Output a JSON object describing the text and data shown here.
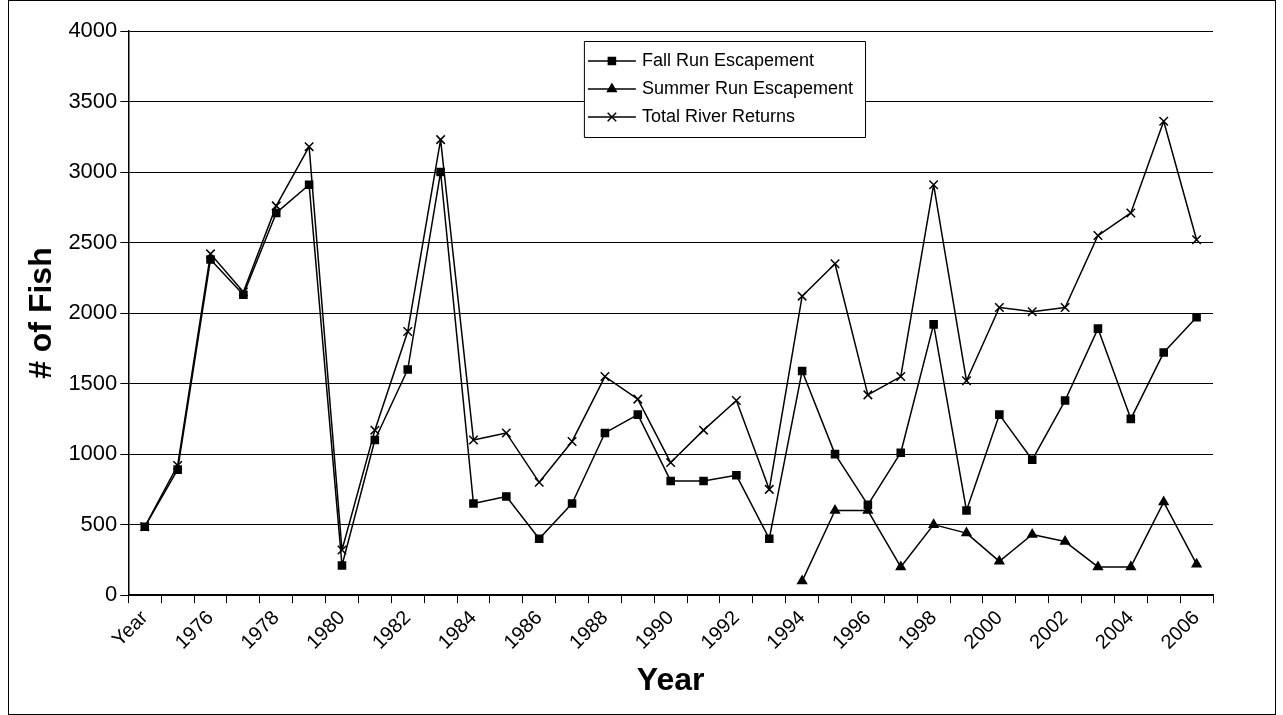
{
  "chart_data": {
    "type": "line",
    "xlabel": "Year",
    "ylabel": "# of Fish",
    "categories": [
      "Year",
      null,
      "1976",
      null,
      "1978",
      null,
      "1980",
      null,
      "1982",
      null,
      "1984",
      null,
      "1986",
      null,
      "1988",
      null,
      "1990",
      null,
      "1992",
      null,
      "1994",
      null,
      "1996",
      null,
      "1998",
      null,
      "2000",
      null,
      "2002",
      null,
      "2004",
      null,
      "2006"
    ],
    "series": [
      {
        "name": "Fall Run Escapement",
        "color": "#000000",
        "marker": "square",
        "values": [
          485,
          890,
          2380,
          2130,
          2710,
          2910,
          210,
          1100,
          1600,
          3000,
          650,
          700,
          400,
          650,
          1150,
          1280,
          810,
          810,
          850,
          400,
          1590,
          1000,
          640,
          1010,
          1920,
          600,
          1280,
          960,
          1380,
          1890,
          1250,
          1720,
          1970
        ]
      },
      {
        "name": "Summer Run Escapement",
        "color": "#000000",
        "marker": "triangle",
        "values": [
          null,
          null,
          null,
          null,
          null,
          null,
          null,
          null,
          null,
          null,
          null,
          null,
          null,
          null,
          null,
          null,
          null,
          null,
          null,
          null,
          100,
          600,
          600,
          200,
          500,
          440,
          240,
          430,
          380,
          200,
          200,
          660,
          220
        ]
      },
      {
        "name": "Total River Returns",
        "color": "#000000",
        "marker": "cross",
        "values": [
          485,
          920,
          2420,
          2150,
          2760,
          3180,
          320,
          1170,
          1870,
          3230,
          1100,
          1150,
          800,
          1090,
          1550,
          1390,
          940,
          1170,
          1380,
          750,
          2120,
          2350,
          1420,
          1550,
          2910,
          1520,
          2040,
          2010,
          2040,
          2550,
          2710,
          3360,
          2520
        ]
      }
    ],
    "ylim": [
      0,
      4000
    ],
    "yticks": [
      0,
      500,
      1000,
      1500,
      2000,
      2500,
      3000,
      3500,
      4000
    ],
    "grid": "y",
    "legend": "top",
    "line_style": "solid"
  }
}
